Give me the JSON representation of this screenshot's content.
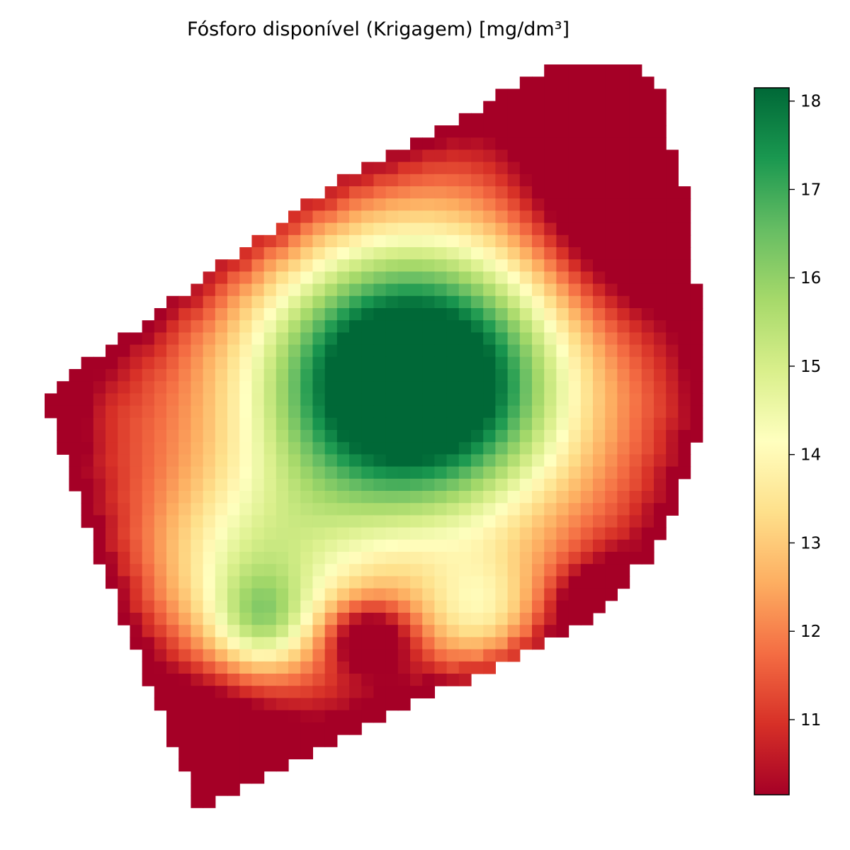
{
  "chart_data": {
    "type": "heatmap",
    "title": "Fósforo disponível (Krigagem) [mg/dm³]",
    "xlabel": "",
    "ylabel": "",
    "axes_visible": false,
    "grid": false,
    "colormap": "RdYlGn",
    "colormap_stops": [
      "#a50026",
      "#d73027",
      "#f46d43",
      "#fdae61",
      "#fee08b",
      "#ffffbf",
      "#d9ef8b",
      "#a6d96a",
      "#66bd63",
      "#1a9850",
      "#006837"
    ],
    "value_range": [
      10.15,
      18.15
    ],
    "colorbar": {
      "position": "right",
      "ticks": [
        11,
        12,
        13,
        14,
        15,
        16,
        17,
        18
      ],
      "tick_labels": [
        "11",
        "12",
        "13",
        "14",
        "15",
        "16",
        "17",
        "18"
      ]
    },
    "surface": {
      "grid_resolution": "approximately 54 x 61 cells",
      "description_points": [
        {
          "label": "central high",
          "value": 18.15
        },
        {
          "label": "north-east edge",
          "value": 10.15
        },
        {
          "label": "south-west edge",
          "value": 10.15
        },
        {
          "label": "western edge",
          "value": 11.2
        },
        {
          "label": "south-central lobe",
          "value": 13.2
        },
        {
          "label": "southern green patches",
          "value": 16.0
        }
      ]
    }
  }
}
